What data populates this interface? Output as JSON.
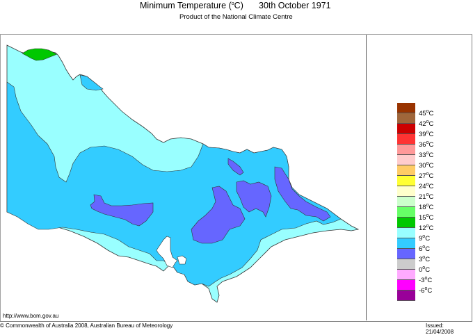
{
  "header": {
    "title_prefix": "Minimum Temperature (",
    "title_unit_deg": "o",
    "title_suffix": "C)",
    "date": "30th October 1971",
    "subtitle": "Product of the National Climate Centre"
  },
  "map": {
    "region": "Victoria, Australia",
    "variable": "Minimum Temperature",
    "zones_visible": [
      {
        "range": "12-15°C",
        "color": "#00c800"
      },
      {
        "range": "9-12°C",
        "color": "#99ffff"
      },
      {
        "range": "6-9°C",
        "color": "#33ccff"
      },
      {
        "range": "3-6°C",
        "color": "#6666ff"
      }
    ]
  },
  "legend": {
    "items": [
      {
        "label": "45",
        "color": "#993300"
      },
      {
        "label": "42",
        "color": "#a0663a"
      },
      {
        "label": "39",
        "color": "#cc0000"
      },
      {
        "label": "36",
        "color": "#ff3333"
      },
      {
        "label": "33",
        "color": "#ff9999"
      },
      {
        "label": "30",
        "color": "#ffcccc"
      },
      {
        "label": "27",
        "color": "#ffcc66"
      },
      {
        "label": "24",
        "color": "#ffff33"
      },
      {
        "label": "21",
        "color": "#ffffcc"
      },
      {
        "label": "18",
        "color": "#ccffcc"
      },
      {
        "label": "15",
        "color": "#66ff66"
      },
      {
        "label": "12",
        "color": "#00c800"
      },
      {
        "label": "9",
        "color": "#99ffff"
      },
      {
        "label": "6",
        "color": "#33ccff"
      },
      {
        "label": "3",
        "color": "#6666ff"
      },
      {
        "label": "0",
        "color": "#cccccc"
      },
      {
        "label": "-3",
        "color": "#ffaaff"
      },
      {
        "label": "-6",
        "color": "#ff00ff"
      },
      {
        "label": "",
        "color": "#990099"
      }
    ],
    "unit": "C"
  },
  "footer": {
    "url": "http://www.bom.gov.au",
    "copyright": "© Commonwealth of Australia 2008, Australian Bureau of Meteorology",
    "issued": "Issued: 21/04/2008"
  }
}
